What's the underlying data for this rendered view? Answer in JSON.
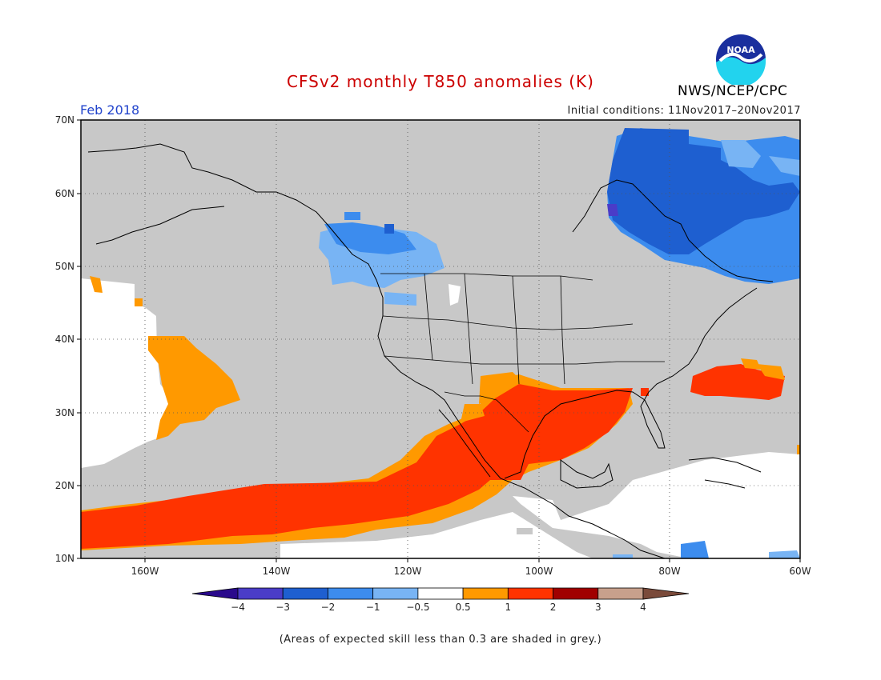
{
  "header": {
    "title": "CFSv2 monthly T850 anomalies (K)",
    "period": "Feb 2018",
    "initial_conditions": "Initial conditions: 11Nov2017–20Nov2017",
    "agency": "NWS/NCEP/CPC",
    "logo_text": "NOAA"
  },
  "colors": {
    "title": "#cc0000",
    "period": "#2244cc",
    "low_skill_grey": "#c8c8c8",
    "land_outline": "#000000"
  },
  "map": {
    "region": "North America and eastern Pacific",
    "lat_labels": [
      "70N",
      "60N",
      "50N",
      "40N",
      "30N",
      "20N",
      "10N"
    ],
    "lon_labels": [
      "160W",
      "140W",
      "120W",
      "100W",
      "80W",
      "60W"
    ]
  },
  "legend": {
    "bins": [
      {
        "color": "#2a0a8c"
      },
      {
        "color": "#4a3cc8"
      },
      {
        "color": "#1e5fd0"
      },
      {
        "color": "#3c8cee"
      },
      {
        "color": "#78b4f4"
      },
      {
        "color": "#ffffff"
      },
      {
        "color": "#ff9900"
      },
      {
        "color": "#ff3300"
      },
      {
        "color": "#a00000"
      },
      {
        "color": "#c8a08c"
      },
      {
        "color": "#7a4a3a"
      }
    ],
    "tick_labels": [
      "−4",
      "−3",
      "−2",
      "−1",
      "−0.5",
      "0.5",
      "1",
      "2",
      "3",
      "4"
    ]
  },
  "footnote": "(Areas of expected skill less than 0.3 are shaded in grey.)"
}
